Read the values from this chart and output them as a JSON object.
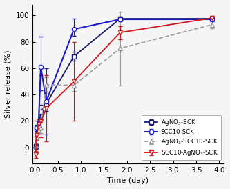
{
  "series": [
    {
      "label": "AgNO$_3$-SCK",
      "color": "#1a1a6e",
      "marker": "s",
      "linestyle": "-",
      "linewidth": 1.3,
      "x": [
        0.02,
        0.04,
        0.08,
        0.13,
        0.25,
        0.85,
        1.85,
        3.85
      ],
      "y": [
        1.0,
        14.0,
        14.5,
        27.0,
        33.0,
        69.0,
        97.5,
        97.5
      ],
      "yerr_lo": [
        1.5,
        3.0,
        2.5,
        5.0,
        5.5,
        3.5,
        1.5,
        1.5
      ],
      "yerr_hi": [
        1.5,
        3.0,
        2.5,
        5.0,
        5.5,
        3.5,
        1.5,
        1.5
      ]
    },
    {
      "label": "SCC10-SCK",
      "color": "#1a1acc",
      "marker": "o",
      "linestyle": "-",
      "linewidth": 1.5,
      "x": [
        0.02,
        0.04,
        0.08,
        0.13,
        0.25,
        0.85,
        1.85,
        3.85
      ],
      "y": [
        0.5,
        15.0,
        16.0,
        61.0,
        35.0,
        89.5,
        97.0,
        97.0
      ],
      "yerr_lo": [
        1.5,
        5.0,
        3.5,
        18.0,
        25.0,
        5.0,
        1.5,
        1.5
      ],
      "yerr_hi": [
        1.5,
        5.0,
        3.5,
        23.0,
        25.0,
        8.0,
        1.5,
        1.5
      ]
    },
    {
      "label": "AgNO$_3$-SCC10-SCK",
      "color": "#999999",
      "marker": "^",
      "linestyle": "--",
      "linewidth": 1.2,
      "x": [
        0.02,
        0.04,
        0.08,
        0.13,
        0.25,
        0.85,
        1.85,
        3.85
      ],
      "y": [
        1.5,
        7.5,
        13.0,
        15.0,
        47.5,
        47.0,
        75.0,
        93.0
      ],
      "yerr_lo": [
        1.5,
        2.0,
        2.5,
        4.0,
        5.5,
        4.5,
        28.0,
        3.0
      ],
      "yerr_hi": [
        1.5,
        2.0,
        2.5,
        4.0,
        5.5,
        4.5,
        28.0,
        3.0
      ]
    },
    {
      "label": "SCC10-AgNO$_3$-SCK",
      "color": "#cc1a1a",
      "marker": "v",
      "linestyle": "-",
      "linewidth": 1.3,
      "x": [
        0.02,
        0.04,
        0.08,
        0.13,
        0.25,
        0.85,
        1.85,
        3.85
      ],
      "y": [
        -5.5,
        9.0,
        17.5,
        19.5,
        29.5,
        50.0,
        87.0,
        98.0
      ],
      "yerr_lo": [
        2.5,
        3.5,
        3.5,
        12.0,
        25.0,
        30.0,
        5.0,
        1.5
      ],
      "yerr_hi": [
        2.5,
        3.5,
        3.5,
        35.0,
        25.0,
        30.0,
        5.0,
        1.5
      ]
    }
  ],
  "xlabel": "Time (day)",
  "ylabel": "Silver release (%)",
  "xlim": [
    -0.05,
    4.1
  ],
  "ylim": [
    -12,
    108
  ],
  "xticks": [
    0.0,
    0.5,
    1.0,
    1.5,
    2.0,
    2.5,
    3.0,
    3.5,
    4.0
  ],
  "yticks": [
    0,
    20,
    40,
    60,
    80,
    100
  ],
  "figsize": [
    3.33,
    2.74
  ],
  "dpi": 100,
  "legend_fontsize": 6.2,
  "axis_fontsize": 8,
  "tick_fontsize": 7.5,
  "bg_color": "#f5f5f5"
}
